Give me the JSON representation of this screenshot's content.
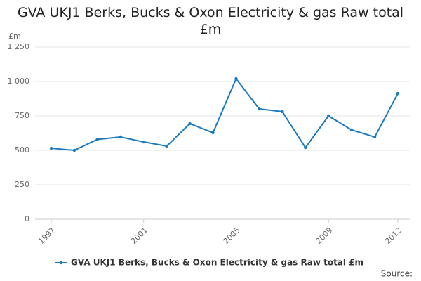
{
  "chart_data": {
    "type": "line",
    "title": "GVA UKJ1 Berks, Bucks & Oxon Electricity & gas Raw total £m",
    "y_label": "£m",
    "source": "Source:",
    "x": [
      1997,
      1998,
      1999,
      2000,
      2001,
      2002,
      2003,
      2004,
      2005,
      2006,
      2007,
      2008,
      2009,
      2010,
      2011,
      2012
    ],
    "xlim": [
      1997,
      2012
    ],
    "xticks": [
      1997,
      2001,
      2005,
      2009,
      2012
    ],
    "ylim": [
      0,
      1250
    ],
    "yticks": [
      0,
      250,
      500,
      750,
      {
        "value": 1000,
        "label": "1 000"
      },
      {
        "value": 1250,
        "label": "1 250"
      }
    ],
    "grid": true,
    "legend": "bottom",
    "series": [
      {
        "name": "GVA UKJ1 Berks, Bucks & Oxon Electricity & gas Raw total £m",
        "color": "#1a7abf",
        "values": [
          515,
          500,
          580,
          597,
          561,
          531,
          694,
          628,
          1020,
          801,
          781,
          520,
          750,
          648,
          597,
          913
        ]
      }
    ]
  }
}
